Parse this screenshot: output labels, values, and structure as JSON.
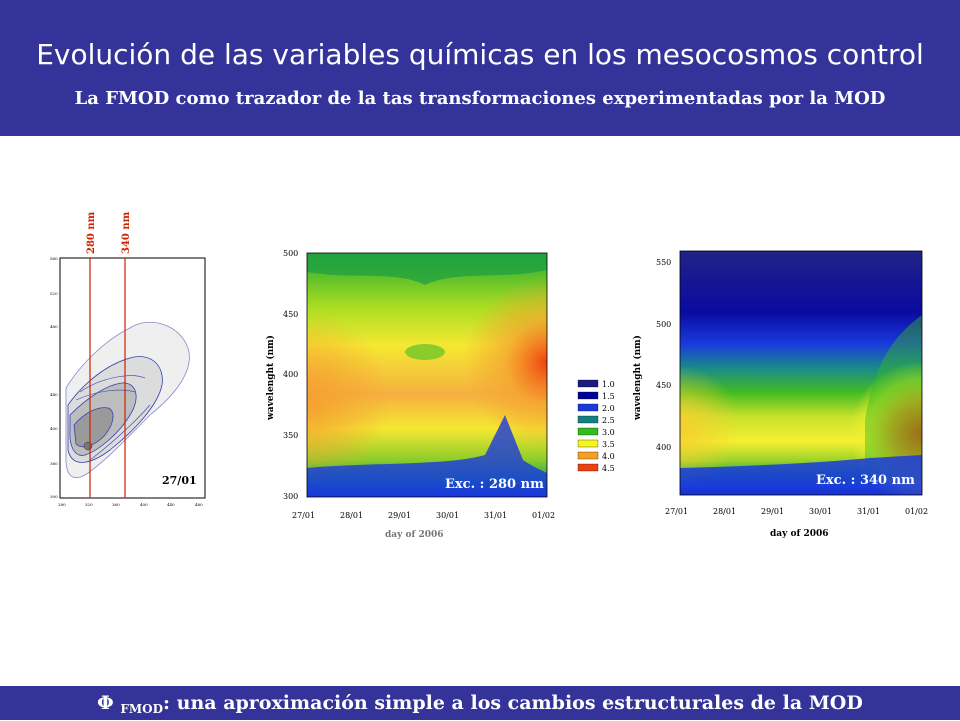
{
  "header": {
    "title": "Evolución de las variables químicas en los mesocosmos control",
    "subtitle": "La FMOD como trazador de la tas transformaciones experimentadas por la MOD",
    "background_color": "#333399"
  },
  "footer": {
    "phi_symbol": "Φ",
    "subscript": "FMOD",
    "text": ": una aproximación simple a los cambios estructurales de la MOD",
    "background_color": "#333399"
  },
  "eem_plot": {
    "label_280": "280 nm",
    "label_340": "340 nm",
    "date_label": "27/01",
    "y_ticks": [
      "560",
      "520",
      "480",
      "440",
      "400",
      "360",
      "300"
    ],
    "x_ticks": [
      "280",
      "320",
      "360",
      "400",
      "440",
      "480"
    ],
    "line_color": "#cc2200"
  },
  "chart_data": [
    {
      "type": "heatmap",
      "title": "",
      "annotation": "Exc. : 280 nm",
      "xlabel": "day of 2006",
      "ylabel": "wavelenght (nm)",
      "x": [
        "27/01",
        "28/01",
        "29/01",
        "30/01",
        "31/01",
        "01/02"
      ],
      "y_ticks": [
        "500",
        "450",
        "400",
        "350",
        "300"
      ],
      "ylim": [
        300,
        500
      ],
      "colorbar": {
        "levels": [
          "1.0",
          "1.5",
          "2.0",
          "2.5",
          "3.0",
          "3.5",
          "4.0",
          "4.5"
        ],
        "colors": [
          "#1a1a80",
          "#000099",
          "#1a3adc",
          "#128080",
          "#33bb22",
          "#f5f520",
          "#f5a020",
          "#f04010"
        ]
      }
    },
    {
      "type": "heatmap",
      "title": "",
      "annotation": "Exc. : 340 nm",
      "xlabel": "day of 2006",
      "ylabel": "wavelenght (nm)",
      "x": [
        "27/01",
        "28/01",
        "29/01",
        "30/01",
        "31/01",
        "01/02"
      ],
      "y_ticks": [
        "550",
        "500",
        "450",
        "400"
      ],
      "ylim": [
        365,
        560
      ]
    }
  ]
}
